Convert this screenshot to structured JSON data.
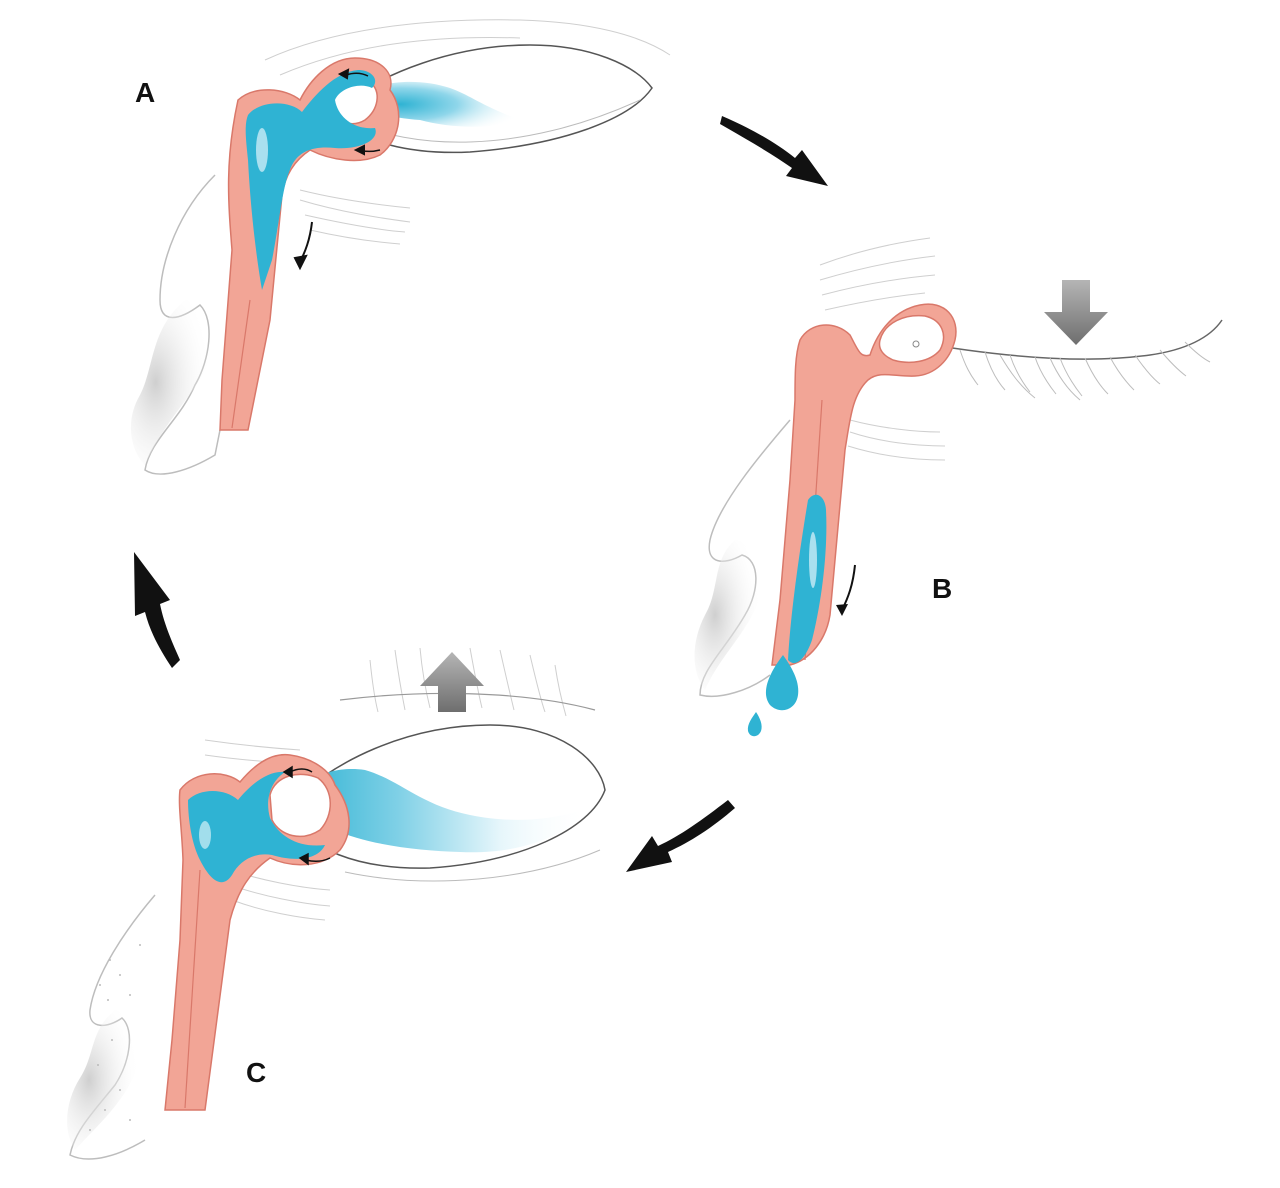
{
  "labels": {
    "a": "A",
    "b": "B",
    "c": "C"
  },
  "colors": {
    "duct_fill": "#f2a596",
    "duct_stroke": "#d9786a",
    "tear_fluid": "#2fb3d3",
    "tear_light": "#bfe8f3",
    "cycle_arrow": "#111111",
    "force_arrow": "#8a8a8a",
    "sketch_line": "#c8c8c8",
    "skin_shadow": "#d8d8d8"
  }
}
